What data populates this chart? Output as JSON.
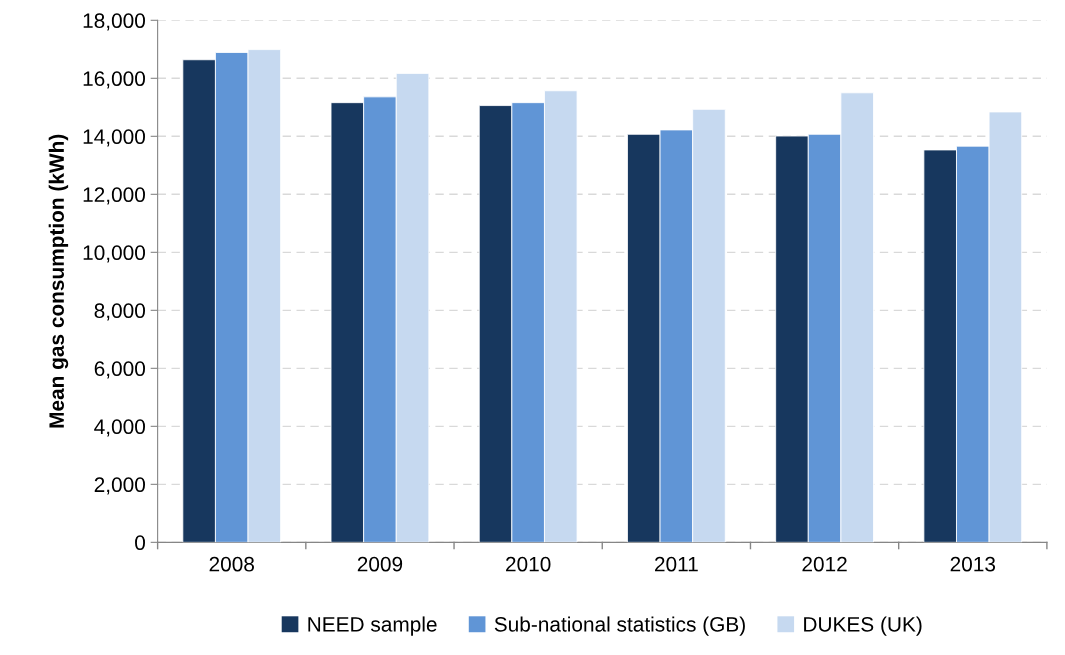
{
  "chart_data": {
    "type": "bar",
    "ylabel": "Mean gas consumption (kWh)",
    "categories": [
      "2008",
      "2009",
      "2010",
      "2011",
      "2012",
      "2013"
    ],
    "series": [
      {
        "name": "NEED sample",
        "color": "#17375e",
        "values": [
          16640,
          15160,
          15060,
          14070,
          14010,
          13530
        ]
      },
      {
        "name": "Sub-national statistics (GB)",
        "color": "#6095d6",
        "values": [
          16890,
          15360,
          15160,
          14220,
          14070,
          13660
        ]
      },
      {
        "name": "DUKES (UK)",
        "color": "#c6d9f0",
        "values": [
          16990,
          16170,
          15570,
          14930,
          15500,
          14840
        ]
      }
    ],
    "ylim": [
      0,
      18000
    ],
    "yticks": [
      {
        "value": 0,
        "label": "0"
      },
      {
        "value": 2000,
        "label": "2,000"
      },
      {
        "value": 4000,
        "label": "4,000"
      },
      {
        "value": 6000,
        "label": "6,000"
      },
      {
        "value": 8000,
        "label": "8,000"
      },
      {
        "value": 10000,
        "label": "10,000"
      },
      {
        "value": 12000,
        "label": "12,000"
      },
      {
        "value": 14000,
        "label": "14,000"
      },
      {
        "value": 16000,
        "label": "16,000"
      },
      {
        "value": 18000,
        "label": "18,000"
      }
    ],
    "grid": "y",
    "legend": "bottom"
  }
}
